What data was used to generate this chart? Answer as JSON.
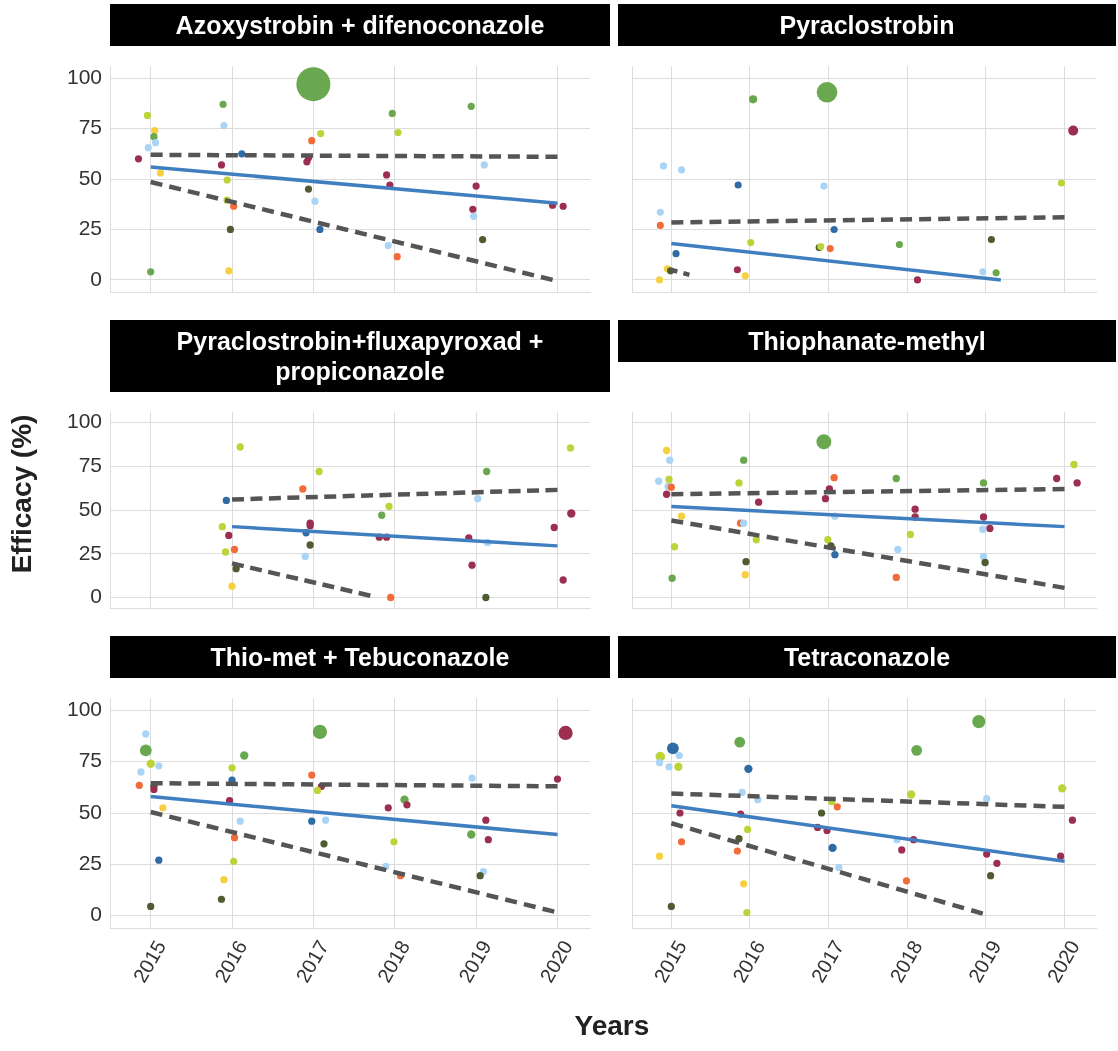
{
  "chart_data": [
    {
      "type": "bubble",
      "title": "Azoxystrobin + difenoconazole",
      "xlim": [
        2014.5,
        2020.4
      ],
      "ylim": [
        -6,
        106
      ],
      "xticks": [
        2015,
        2016,
        2017,
        2018,
        2019,
        2020
      ],
      "yticks": [
        0,
        25,
        50,
        75,
        100
      ],
      "grid": true,
      "legend": false,
      "tick_labels": "y",
      "series": [
        {
          "type": "bubble",
          "x": [
            2014.85,
            2014.96,
            2015,
            2015.05,
            2015.04,
            2014.97,
            2015.06,
            2015.12,
            2015.89,
            2015.9,
            2015.87,
            2016.12,
            2015.94,
            2015.94,
            2016.02,
            2015.98,
            2015.96,
            2017,
            2017.09,
            2016.98,
            2016.94,
            2016.92,
            2016.94,
            2017.02,
            2017.08,
            2017.97,
            2018.04,
            2017.9,
            2017.94,
            2017.92,
            2018.03,
            2018.94,
            2019.1,
            2019,
            2018.96,
            2018.97,
            2019.08,
            2019.94,
            2020.07
          ],
          "values": [
            60,
            81.5,
            4,
            74,
            71,
            65.5,
            68,
            53,
            87,
            76.5,
            57,
            62.5,
            49.5,
            39.5,
            36.5,
            25,
            4.5,
            97,
            72.5,
            69,
            60.5,
            58.5,
            45,
            39,
            25,
            82.5,
            73,
            52,
            47,
            17,
            11.5,
            86,
            57,
            46.5,
            35,
            31.5,
            20,
            37,
            36.5
          ],
          "colors": [
            "#9c2f4f",
            "#bcd43a",
            "#6aa84f",
            "#f6d040",
            "#6aa84f",
            "#a9d4f5",
            "#a9d4f5",
            "#f6d040",
            "#6aa84f",
            "#a9d4f5",
            "#9c2f4f",
            "#2f6ba5",
            "#bcd43a",
            "#bcd43a",
            "#f26b3a",
            "#4f5b31",
            "#f6d040",
            "#6aa84f",
            "#bcd43a",
            "#f26b3a",
            "#9c2f4f",
            "#9c2f4f",
            "#4f5b31",
            "#a9d4f5",
            "#2f6ba5",
            "#6aa84f",
            "#bcd43a",
            "#9c2f4f",
            "#9c2f4f",
            "#a9d4f5",
            "#f26b3a",
            "#6aa84f",
            "#a9d4f5",
            "#9c2f4f",
            "#9c2f4f",
            "#a9d4f5",
            "#4f5b31",
            "#9c2f4f",
            "#9c2f4f"
          ],
          "sizes": [
            0.045,
            0.045,
            0.045,
            0.045,
            0.045,
            0.045,
            0.045,
            0.045,
            0.045,
            0.045,
            0.045,
            0.045,
            0.045,
            0.045,
            0.045,
            0.045,
            0.045,
            1,
            0.045,
            0.045,
            0.045,
            0.045,
            0.045,
            0.045,
            0.045,
            0.045,
            0.045,
            0.045,
            0.045,
            0.045,
            0.045,
            0.045,
            0.045,
            0.045,
            0.045,
            0.045,
            0.045,
            0.045,
            0.045
          ]
        },
        {
          "type": "line",
          "x": [
            2015,
            2020
          ],
          "values": [
            56,
            38
          ],
          "color": "#3f7fbf",
          "line_style": "solid"
        },
        {
          "type": "line",
          "x": [
            2015,
            2020
          ],
          "values": [
            62,
            61
          ],
          "color": "#555555",
          "line_style": "dashed"
        },
        {
          "type": "line",
          "x": [
            2015,
            2019.94
          ],
          "values": [
            48.5,
            0
          ],
          "color": "#555555",
          "line_style": "dashed"
        }
      ]
    },
    {
      "type": "bubble",
      "title": "Pyraclostrobin",
      "xlim": [
        2014.5,
        2020.4
      ],
      "ylim": [
        -6,
        106
      ],
      "xticks": [
        2015,
        2016,
        2017,
        2018,
        2019,
        2020
      ],
      "yticks": [
        0,
        25,
        50,
        75,
        100
      ],
      "grid": true,
      "legend": false,
      "tick_labels": false,
      "series": [
        {
          "type": "bubble",
          "x": [
            2016.04,
            2016.98,
            2020.11,
            2014.9,
            2015.13,
            2015.85,
            2016.94,
            2019.96,
            2014.86,
            2014.86,
            2017.07,
            2016.01,
            2015.06,
            2016.88,
            2016.9,
            2017.02,
            2017.9,
            2019.07,
            2019.13,
            2018.96,
            2014.95,
            2014.99,
            2015.84,
            2015.94,
            2014.85,
            2018.13
          ],
          "values": [
            89.5,
            93,
            74,
            56.5,
            54.5,
            47,
            46.5,
            48,
            33.5,
            27,
            25,
            18.5,
            13,
            16,
            16.5,
            15.5,
            17.5,
            20,
            3.5,
            4,
            5.5,
            4.5,
            5,
            2,
            0,
            0
          ],
          "colors": [
            "#6aa84f",
            "#6aa84f",
            "#9c2f4f",
            "#a9d4f5",
            "#a9d4f5",
            "#2f6ba5",
            "#a9d4f5",
            "#bcd43a",
            "#a9d4f5",
            "#f26b3a",
            "#2f6ba5",
            "#bcd43a",
            "#2f6ba5",
            "#4f5b31",
            "#bcd43a",
            "#f26b3a",
            "#6aa84f",
            "#4f5b31",
            "#6aa84f",
            "#a9d4f5",
            "#f6d040",
            "#4f5b31",
            "#9c2f4f",
            "#f6d040",
            "#f6d040",
            "#9c2f4f"
          ],
          "sizes": [
            0.16,
            1,
            0.24,
            0.12,
            0.12,
            0.12,
            0.12,
            0.12,
            0.12,
            0.12,
            0.12,
            0.12,
            0.12,
            0.12,
            0.12,
            0.12,
            0.12,
            0.12,
            0.12,
            0.12,
            0.12,
            0.12,
            0.12,
            0.12,
            0.12,
            0.12
          ]
        },
        {
          "type": "line",
          "x": [
            2015,
            2019.19
          ],
          "values": [
            18,
            0
          ],
          "color": "#3f7fbf",
          "line_style": "solid"
        },
        {
          "type": "line",
          "x": [
            2015,
            2020
          ],
          "values": [
            28.5,
            31
          ],
          "color": "#555555",
          "line_style": "dashed"
        },
        {
          "type": "line",
          "x": [
            2015,
            2015.23
          ],
          "values": [
            5,
            2.5
          ],
          "color": "#555555",
          "line_style": "dashed"
        }
      ]
    },
    {
      "type": "bubble",
      "title": "Pyraclostrobin+fluxapyroxad + propiconazole",
      "ylabel": "Efficacy (%)",
      "xlim": [
        2014.5,
        2020.4
      ],
      "ylim": [
        -6,
        106
      ],
      "xticks": [
        2015,
        2016,
        2017,
        2018,
        2019,
        2020
      ],
      "yticks": [
        0,
        25,
        50,
        75,
        100
      ],
      "grid": true,
      "legend": false,
      "tick_labels": "y",
      "series": [
        {
          "type": "bubble",
          "x": [
            2016.1,
            2020.16,
            2017.07,
            2019.13,
            2016.87,
            2015.93,
            2019.02,
            2017.93,
            2017.84,
            2020.17,
            2015.88,
            2016.96,
            2016.96,
            2015.96,
            2016.91,
            2019.96,
            2017.81,
            2017.9,
            2018.91,
            2019.14,
            2016.96,
            2015.92,
            2016.03,
            2016.9,
            2016.05,
            2018.95,
            2016,
            2017.95,
            2019.12,
            2020.07
          ],
          "values": [
            86,
            85.5,
            72,
            72,
            62,
            55.5,
            56.5,
            52,
            47,
            48,
            40.5,
            42.5,
            41,
            35.5,
            37,
            40,
            34.5,
            34.5,
            34,
            31.5,
            30,
            26,
            27.5,
            23.5,
            16.5,
            18.5,
            6.5,
            0,
            0,
            10
          ],
          "colors": [
            "#bcd43a",
            "#bcd43a",
            "#bcd43a",
            "#6aa84f",
            "#f26b3a",
            "#2f6ba5",
            "#a9d4f5",
            "#bcd43a",
            "#6aa84f",
            "#9c2f4f",
            "#bcd43a",
            "#9c2f4f",
            "#9c2f4f",
            "#9c2f4f",
            "#2f6ba5",
            "#9c2f4f",
            "#9c2f4f",
            "#9c2f4f",
            "#9c2f4f",
            "#a9d4f5",
            "#4f5b31",
            "#bcd43a",
            "#f26b3a",
            "#a9d4f5",
            "#4f5b31",
            "#9c2f4f",
            "#f6d040",
            "#f26b3a",
            "#4f5b31",
            "#9c2f4f"
          ],
          "sizes": [
            0.75,
            0.75,
            0.75,
            0.75,
            0.75,
            0.75,
            0.75,
            0.75,
            0.75,
            1,
            0.75,
            0.75,
            0.75,
            0.75,
            0.75,
            0.75,
            0.75,
            0.75,
            0.75,
            0.75,
            0.75,
            0.75,
            0.75,
            0.75,
            0.75,
            0.75,
            0.75,
            0.75,
            0.75,
            0.75
          ]
        },
        {
          "type": "line",
          "x": [
            2016,
            2020
          ],
          "values": [
            40.5,
            29.5
          ],
          "color": "#3f7fbf",
          "line_style": "solid"
        },
        {
          "type": "line",
          "x": [
            2016,
            2020
          ],
          "values": [
            56,
            61.5
          ],
          "color": "#555555",
          "line_style": "dashed"
        },
        {
          "type": "line",
          "x": [
            2016,
            2017.7
          ],
          "values": [
            19.5,
            1
          ],
          "color": "#555555",
          "line_style": "dashed"
        }
      ]
    },
    {
      "type": "bubble",
      "title": "Thiophanate-methyl",
      "xlim": [
        2014.5,
        2020.4
      ],
      "ylim": [
        -6,
        106
      ],
      "xticks": [
        2015,
        2016,
        2017,
        2018,
        2019,
        2020
      ],
      "yticks": [
        0,
        25,
        50,
        75,
        100
      ],
      "grid": true,
      "legend": false,
      "tick_labels": false,
      "series": [
        {
          "type": "bubble",
          "x": [
            2016.94,
            2014.94,
            2014.98,
            2015.92,
            2020.12,
            2014.84,
            2014.97,
            2015.86,
            2017.07,
            2017.86,
            2018.97,
            2019.9,
            2020.16,
            2014.96,
            2015,
            2014.94,
            2017.01,
            2016.96,
            2016.11,
            2015.13,
            2015.88,
            2015.92,
            2017.08,
            2018.1,
            2018.1,
            2018.97,
            2019.05,
            2018.96,
            2016.08,
            2016.99,
            2017.03,
            2018.04,
            2015.04,
            2017.88,
            2017.08,
            2018.97,
            2015.95,
            2018.99,
            2015.94,
            2015.01,
            2017.86
          ],
          "values": [
            89,
            84,
            78.5,
            78.5,
            76,
            66.5,
            67.5,
            65.5,
            68.5,
            68,
            65.5,
            68,
            65.5,
            63.5,
            63,
            59,
            62,
            56.5,
            54.5,
            46.5,
            42.5,
            42.5,
            46.5,
            50.5,
            46,
            46,
            39.5,
            39,
            33,
            33,
            29.5,
            36,
            29,
            27.5,
            24.5,
            23.5,
            20.5,
            20,
            13,
            11,
            11.5
          ],
          "colors": [
            "#6aa84f",
            "#f6d040",
            "#a9d4f5",
            "#6aa84f",
            "#bcd43a",
            "#a9d4f5",
            "#bcd43a",
            "#bcd43a",
            "#f26b3a",
            "#6aa84f",
            "#6aa84f",
            "#9c2f4f",
            "#9c2f4f",
            "#a9d4f5",
            "#f26b3a",
            "#9c2f4f",
            "#9c2f4f",
            "#9c2f4f",
            "#9c2f4f",
            "#f6d040",
            "#f26b3a",
            "#a9d4f5",
            "#a9d4f5",
            "#9c2f4f",
            "#9c2f4f",
            "#9c2f4f",
            "#9c2f4f",
            "#a9d4f5",
            "#bcd43a",
            "#bcd43a",
            "#4f5b31",
            "#bcd43a",
            "#bcd43a",
            "#a9d4f5",
            "#2f6ba5",
            "#a9d4f5",
            "#4f5b31",
            "#4f5b31",
            "#f6d040",
            "#6aa84f",
            "#f26b3a"
          ],
          "sizes": [
            1,
            0.24,
            0.24,
            0.24,
            0.24,
            0.24,
            0.24,
            0.24,
            0.24,
            0.24,
            0.24,
            0.24,
            0.24,
            0.24,
            0.24,
            0.24,
            0.24,
            0.24,
            0.24,
            0.24,
            0.24,
            0.24,
            0.24,
            0.24,
            0.24,
            0.24,
            0.24,
            0.24,
            0.24,
            0.24,
            0.24,
            0.24,
            0.24,
            0.24,
            0.24,
            0.24,
            0.24,
            0.24,
            0.24,
            0.24,
            0.24
          ]
        },
        {
          "type": "line",
          "x": [
            2015,
            2020
          ],
          "values": [
            52,
            40.5
          ],
          "color": "#3f7fbf",
          "line_style": "solid"
        },
        {
          "type": "line",
          "x": [
            2015,
            2020
          ],
          "values": [
            59,
            62
          ],
          "color": "#555555",
          "line_style": "dashed"
        },
        {
          "type": "line",
          "x": [
            2015,
            2020
          ],
          "values": [
            44,
            5.5
          ],
          "color": "#555555",
          "line_style": "dashed"
        }
      ]
    },
    {
      "type": "bubble",
      "title": "Thio-met + Tebuconazole",
      "xlabel": "Years",
      "xlim": [
        2014.5,
        2020.4
      ],
      "ylim": [
        -6,
        106
      ],
      "xticks": [
        2015,
        2016,
        2017,
        2018,
        2019,
        2020
      ],
      "yticks": [
        0,
        25,
        50,
        75,
        100
      ],
      "grid": true,
      "legend": false,
      "series": [
        {
          "type": "bubble",
          "x": [
            2020.1,
            2017.08,
            2014.94,
            2014.94,
            2015,
            2015.1,
            2014.88,
            2014.86,
            2015.04,
            2015.04,
            2015.15,
            2015.1,
            2015,
            2016.15,
            2016,
            2016,
            2015.97,
            2016.1,
            2016.03,
            2016.02,
            2015.9,
            2015.87,
            2016.98,
            2017.1,
            2017.05,
            2016.98,
            2017.15,
            2017.13,
            2017.92,
            2018.12,
            2018.15,
            2017.99,
            2017.89,
            2018.07,
            2018.95,
            2019.12,
            2018.94,
            2019.15,
            2019.09,
            2019.05,
            2020
          ],
          "values": [
            89,
            89.5,
            88.5,
            80.5,
            74,
            73,
            70,
            63.5,
            63,
            61.5,
            52.5,
            27,
            4.5,
            78,
            72,
            66,
            56,
            46,
            38,
            26.5,
            17.5,
            8,
            68.5,
            63,
            61,
            46,
            46.5,
            35,
            52.5,
            56.5,
            54,
            36,
            24,
            19.5,
            67,
            46.5,
            39.5,
            37,
            21.5,
            19.5,
            66.5
          ],
          "colors": [
            "#9c2f4f",
            "#6aa84f",
            "#a9d4f5",
            "#6aa84f",
            "#bcd43a",
            "#a9d4f5",
            "#a9d4f5",
            "#f26b3a",
            "#4f5b31",
            "#9c2f4f",
            "#f6d040",
            "#2f6ba5",
            "#4f5b31",
            "#6aa84f",
            "#bcd43a",
            "#2f6ba5",
            "#9c2f4f",
            "#a9d4f5",
            "#f26b3a",
            "#bcd43a",
            "#f6d040",
            "#4f5b31",
            "#f26b3a",
            "#9c2f4f",
            "#bcd43a",
            "#2f6ba5",
            "#a9d4f5",
            "#4f5b31",
            "#9c2f4f",
            "#6aa84f",
            "#9c2f4f",
            "#bcd43a",
            "#a9d4f5",
            "#f26b3a",
            "#a9d4f5",
            "#9c2f4f",
            "#6aa84f",
            "#9c2f4f",
            "#a9d4f5",
            "#4f5b31",
            "#9c2f4f"
          ],
          "sizes": [
            1,
            1,
            0.26,
            0.7,
            0.35,
            0.26,
            0.26,
            0.26,
            0.26,
            0.26,
            0.26,
            0.26,
            0.26,
            0.35,
            0.26,
            0.26,
            0.26,
            0.26,
            0.26,
            0.26,
            0.26,
            0.26,
            0.26,
            0.26,
            0.26,
            0.26,
            0.26,
            0.26,
            0.26,
            0.35,
            0.26,
            0.26,
            0.26,
            0.26,
            0.26,
            0.26,
            0.35,
            0.26,
            0.26,
            0.26,
            0.26
          ]
        },
        {
          "type": "line",
          "x": [
            2015,
            2020
          ],
          "values": [
            58,
            39.5
          ],
          "color": "#3f7fbf",
          "line_style": "solid"
        },
        {
          "type": "line",
          "x": [
            2015,
            2020
          ],
          "values": [
            64.5,
            63
          ],
          "color": "#555555",
          "line_style": "dashed"
        },
        {
          "type": "line",
          "x": [
            2015,
            2019.96
          ],
          "values": [
            50.5,
            2
          ],
          "color": "#555555",
          "line_style": "dashed"
        }
      ]
    },
    {
      "type": "bubble",
      "title": "Tetraconazole",
      "xlim": [
        2014.5,
        2020.4
      ],
      "ylim": [
        -6,
        106
      ],
      "xticks": [
        2015,
        2016,
        2017,
        2018,
        2019,
        2020
      ],
      "yticks": [
        0,
        25,
        50,
        75,
        100
      ],
      "grid": true,
      "legend": false,
      "tick_labels": "x",
      "series": [
        {
          "type": "bubble",
          "x": [
            2018.91,
            2015.87,
            2015.02,
            2015.1,
            2014.86,
            2014.85,
            2014.97,
            2015.09,
            2015.98,
            2018.12,
            2015.9,
            2016.1,
            2018.05,
            2019.01,
            2019.97,
            2017.04,
            2017.11,
            2016.91,
            2015.11,
            2015.88,
            2020.1,
            2015.97,
            2016.86,
            2016.98,
            2015.13,
            2015.86,
            2015.84,
            2017.05,
            2017.87,
            2018.08,
            2017.93,
            2014.85,
            2019.01,
            2019.14,
            2019.95,
            2017.13,
            2019.06,
            2017.99,
            2015.92,
            2015,
            2015.96
          ],
          "values": [
            94.5,
            84.5,
            81.5,
            78,
            77.5,
            74.5,
            72.5,
            72.5,
            71.5,
            80.5,
            60,
            56.5,
            59,
            57,
            62,
            55.5,
            53,
            50,
            50,
            49.5,
            46.5,
            42,
            43,
            41.5,
            36,
            37.5,
            31.5,
            33,
            37,
            37,
            32,
            29,
            30,
            25.5,
            29,
            23.5,
            19.5,
            17,
            15.5,
            4.5,
            1.5
          ],
          "colors": [
            "#6aa84f",
            "#6aa84f",
            "#2f6ba5",
            "#a9d4f5",
            "#bcd43a",
            "#a9d4f5",
            "#a9d4f5",
            "#bcd43a",
            "#2f6ba5",
            "#6aa84f",
            "#a9d4f5",
            "#a9d4f5",
            "#bcd43a",
            "#a9d4f5",
            "#bcd43a",
            "#bcd43a",
            "#f26b3a",
            "#4f5b31",
            "#9c2f4f",
            "#9c2f4f",
            "#9c2f4f",
            "#bcd43a",
            "#9c2f4f",
            "#9c2f4f",
            "#f26b3a",
            "#4f5b31",
            "#f26b3a",
            "#2f6ba5",
            "#a9d4f5",
            "#9c2f4f",
            "#9c2f4f",
            "#f6d040",
            "#9c2f4f",
            "#9c2f4f",
            "#9c2f4f",
            "#a9d4f5",
            "#4f5b31",
            "#f26b3a",
            "#f6d040",
            "#4f5b31",
            "#bcd43a"
          ],
          "sizes": [
            1,
            0.67,
            0.8,
            0.3,
            0.53,
            0.3,
            0.3,
            0.4,
            0.4,
            0.67,
            0.3,
            0.3,
            0.4,
            0.3,
            0.4,
            0.3,
            0.3,
            0.3,
            0.3,
            0.3,
            0.3,
            0.3,
            0.3,
            0.3,
            0.3,
            0.3,
            0.3,
            0.4,
            0.3,
            0.3,
            0.3,
            0.3,
            0.3,
            0.3,
            0.3,
            0.3,
            0.3,
            0.3,
            0.3,
            0.3,
            0.3
          ]
        },
        {
          "type": "line",
          "x": [
            2015,
            2020
          ],
          "values": [
            53.5,
            26.5
          ],
          "color": "#3f7fbf",
          "line_style": "solid"
        },
        {
          "type": "line",
          "x": [
            2015,
            2020
          ],
          "values": [
            59.5,
            53
          ],
          "color": "#555555",
          "line_style": "dashed"
        },
        {
          "type": "line",
          "x": [
            2015,
            2018.96
          ],
          "values": [
            45,
            1
          ],
          "color": "#555555",
          "line_style": "dashed"
        }
      ]
    }
  ]
}
